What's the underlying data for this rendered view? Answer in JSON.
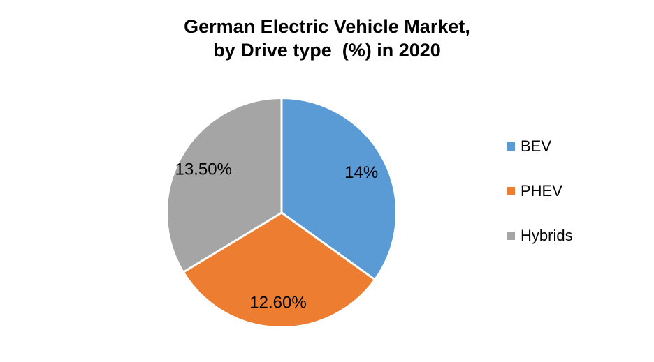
{
  "chart_data": {
    "type": "pie",
    "title_lines": [
      "German Electric Vehicle Market,",
      "by Drive type  (%) in 2020"
    ],
    "title": "German Electric Vehicle Market, by Drive type (%) in 2020",
    "slices": [
      {
        "label": "BEV",
        "value": 14.0,
        "display": "14%",
        "color": "#5B9BD5"
      },
      {
        "label": "PHEV",
        "value": 12.6,
        "display": "12.60%",
        "color": "#ED7D31"
      },
      {
        "label": "Hybrids",
        "value": 13.5,
        "display": "13.50%",
        "color": "#A5A5A5"
      }
    ],
    "start_angle_deg": 0,
    "direction": "clockwise",
    "legend_position": "right",
    "background_color": "#FFFFFF",
    "slice_border_color": "#FFFFFF",
    "label_color": "#000000",
    "title_color": "#000000"
  }
}
